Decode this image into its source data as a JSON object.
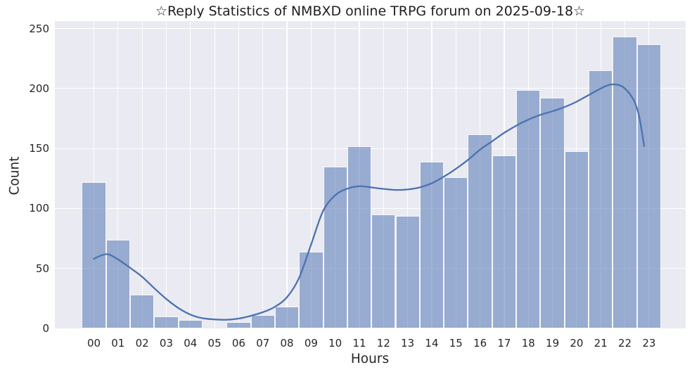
{
  "chart_data": {
    "type": "bar",
    "subtype": "histogram-with-kde",
    "title": "☆Reply Statistics of NMBXD online TRPG forum on 2025-09-18☆",
    "xlabel": "Hours",
    "ylabel": "Count",
    "categories": [
      "00",
      "01",
      "02",
      "03",
      "04",
      "05",
      "06",
      "07",
      "08",
      "09",
      "10",
      "11",
      "12",
      "13",
      "14",
      "15",
      "16",
      "17",
      "18",
      "19",
      "20",
      "21",
      "22",
      "23"
    ],
    "values": [
      122,
      74,
      28,
      10,
      7,
      0,
      5,
      11,
      18,
      64,
      135,
      152,
      95,
      94,
      139,
      126,
      162,
      144,
      199,
      192,
      148,
      215,
      243,
      237
    ],
    "yticks": [
      0,
      50,
      100,
      150,
      200,
      250
    ],
    "ylim": [
      0,
      256
    ],
    "xlim_hours": [
      -1.6,
      24.5
    ],
    "grid": true,
    "legend": "none",
    "kde_curve_points": [
      [
        0,
        58
      ],
      [
        0.3,
        60.8
      ],
      [
        0.6,
        61.8
      ],
      [
        1,
        57.5
      ],
      [
        1.5,
        50.5
      ],
      [
        2,
        43
      ],
      [
        2.5,
        33.5
      ],
      [
        3,
        24.5
      ],
      [
        3.5,
        17
      ],
      [
        4,
        11.5
      ],
      [
        4.5,
        8.5
      ],
      [
        5,
        7.5
      ],
      [
        5.5,
        7.2
      ],
      [
        6,
        8.2
      ],
      [
        6.5,
        10.5
      ],
      [
        7,
        13.5
      ],
      [
        7.5,
        18
      ],
      [
        8,
        26
      ],
      [
        8.5,
        42
      ],
      [
        9,
        70
      ],
      [
        9.5,
        98
      ],
      [
        10,
        111
      ],
      [
        10.5,
        116.5
      ],
      [
        11,
        118.5
      ],
      [
        11.5,
        117.5
      ],
      [
        12,
        116.3
      ],
      [
        12.5,
        115.4
      ],
      [
        13,
        115.8
      ],
      [
        13.5,
        117.5
      ],
      [
        14,
        121
      ],
      [
        14.5,
        126.5
      ],
      [
        15,
        133
      ],
      [
        15.5,
        140.5
      ],
      [
        16,
        149
      ],
      [
        16.5,
        156
      ],
      [
        17,
        163
      ],
      [
        17.5,
        169
      ],
      [
        18,
        174
      ],
      [
        18.5,
        178
      ],
      [
        19,
        181
      ],
      [
        19.5,
        184.5
      ],
      [
        20,
        189
      ],
      [
        20.5,
        194.5
      ],
      [
        21,
        200
      ],
      [
        21.4,
        203.2
      ],
      [
        21.8,
        202.5
      ],
      [
        22.1,
        198
      ],
      [
        22.4,
        189
      ],
      [
        22.6,
        176
      ],
      [
        22.8,
        152
      ]
    ],
    "colors": {
      "bar_fill_base": "#4c72b0",
      "bar_fill_alpha": 0.52,
      "kde_curve": "#4c72b0",
      "plot_background": "#eaeaf2",
      "gridline": "#ffffff",
      "text": "#262626"
    }
  }
}
